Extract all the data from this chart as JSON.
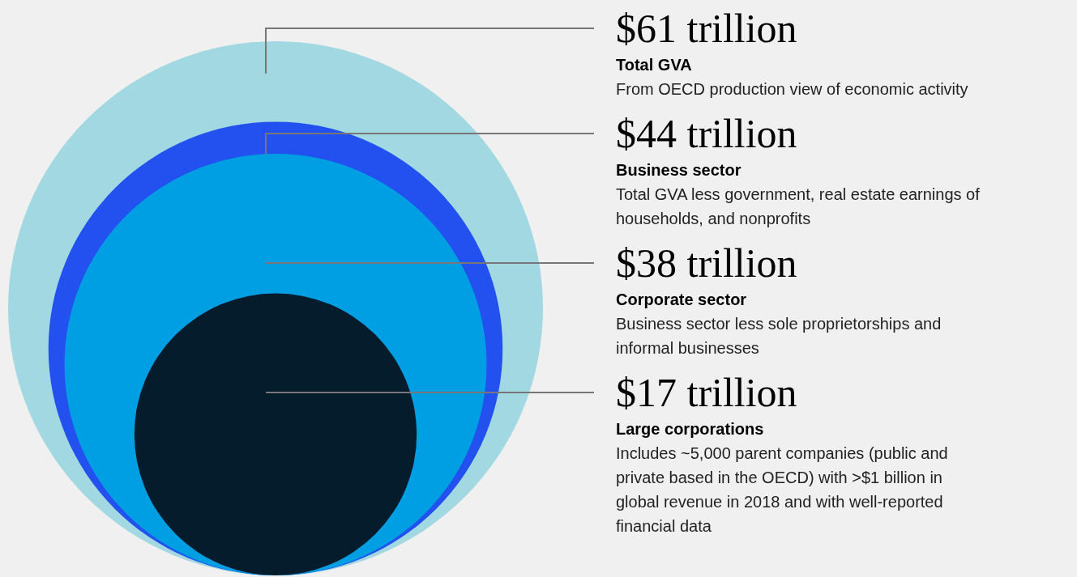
{
  "chart_data": {
    "type": "other",
    "categories": [
      "Total GVA",
      "Business sector",
      "Corporate sector",
      "Large corporations"
    ],
    "values": [
      61,
      44,
      38,
      17
    ],
    "value_labels": [
      "$61 trillion",
      "$44 trillion",
      "$38 trillion",
      "$17 trillion"
    ],
    "colors": [
      "#a1d8e1",
      "#2251f0",
      "#009fe3",
      "#051c2c"
    ],
    "annotations": [
      "From OECD production view of economic activity",
      "Total GVA less government, real estate earnings of households, and nonprofits",
      "Business sector less sole proprietorships and informal businesses",
      "Includes ~5,000 parent companies (public and private based in the OECD) with >$1 billion in global revenue in 2018 and with well-reported financial data"
    ]
  }
}
